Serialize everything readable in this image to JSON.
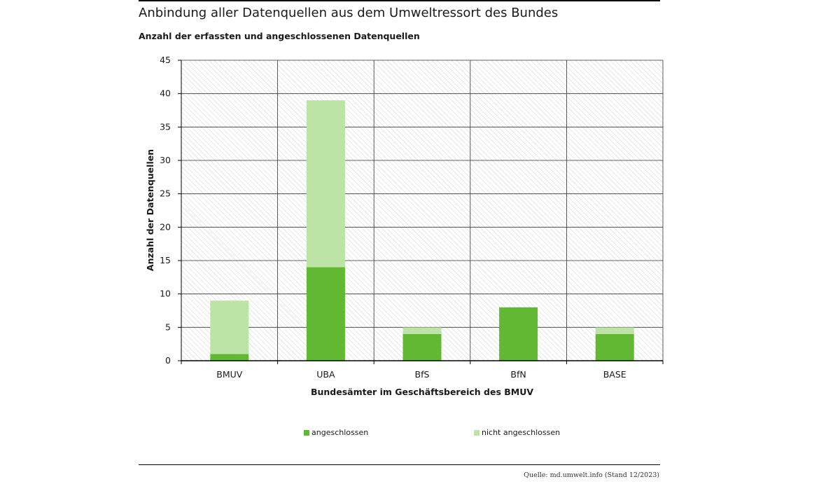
{
  "title": "Anbindung aller Datenquellen aus dem Umweltressort des Bundes",
  "subtitle": "Anzahl der erfassten und angeschlossenen Datenquellen",
  "source": "Quelle: md.umwelt.info (Stand 12/2023)",
  "colors": {
    "angeschlossen": "#62b832",
    "nicht_angeschlossen": "#bde3a6",
    "grid": "#333333",
    "hatch": "#c8c8c8"
  },
  "chart_data": {
    "type": "bar",
    "stacked": true,
    "categories": [
      "BMUV",
      "UBA",
      "BfS",
      "BfN",
      "BASE"
    ],
    "series": [
      {
        "name": "angeschlossen",
        "values": [
          1,
          14,
          4,
          8,
          4
        ]
      },
      {
        "name": "nicht angeschlossen",
        "values": [
          8,
          25,
          1,
          0,
          1
        ]
      }
    ],
    "xlabel": "Bundesämter im Geschäftsbereich des BMUV",
    "ylabel": "Anzahl der Datenquellen",
    "ylim": [
      0,
      45
    ],
    "yticks": [
      0,
      5,
      10,
      15,
      20,
      25,
      30,
      35,
      40,
      45
    ],
    "grid": true,
    "legend": "bottom"
  }
}
